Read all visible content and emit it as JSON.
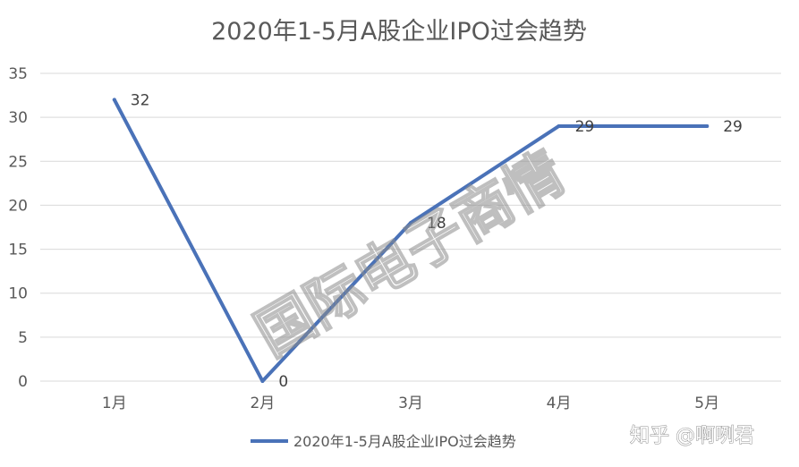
{
  "chart_data": {
    "type": "line",
    "title": "2020年1-5月A股企业IPO过会趋势",
    "categories": [
      "1月",
      "2月",
      "3月",
      "4月",
      "5月"
    ],
    "series": [
      {
        "name": "2020年1-5月A股企业IPO过会趋势",
        "values": [
          32,
          0,
          18,
          29,
          29
        ],
        "color": "#4a72b8"
      }
    ],
    "ylim": [
      0,
      35
    ],
    "yticks": [
      0,
      5,
      10,
      15,
      20,
      25,
      30,
      35
    ],
    "grid": true,
    "legend_position": "bottom"
  },
  "watermark": "国际电子商情",
  "credit": "知乎 @啊咧君",
  "colors": {
    "grid": "#d9d9d9",
    "text": "#595959",
    "line": "#4a72b8"
  }
}
